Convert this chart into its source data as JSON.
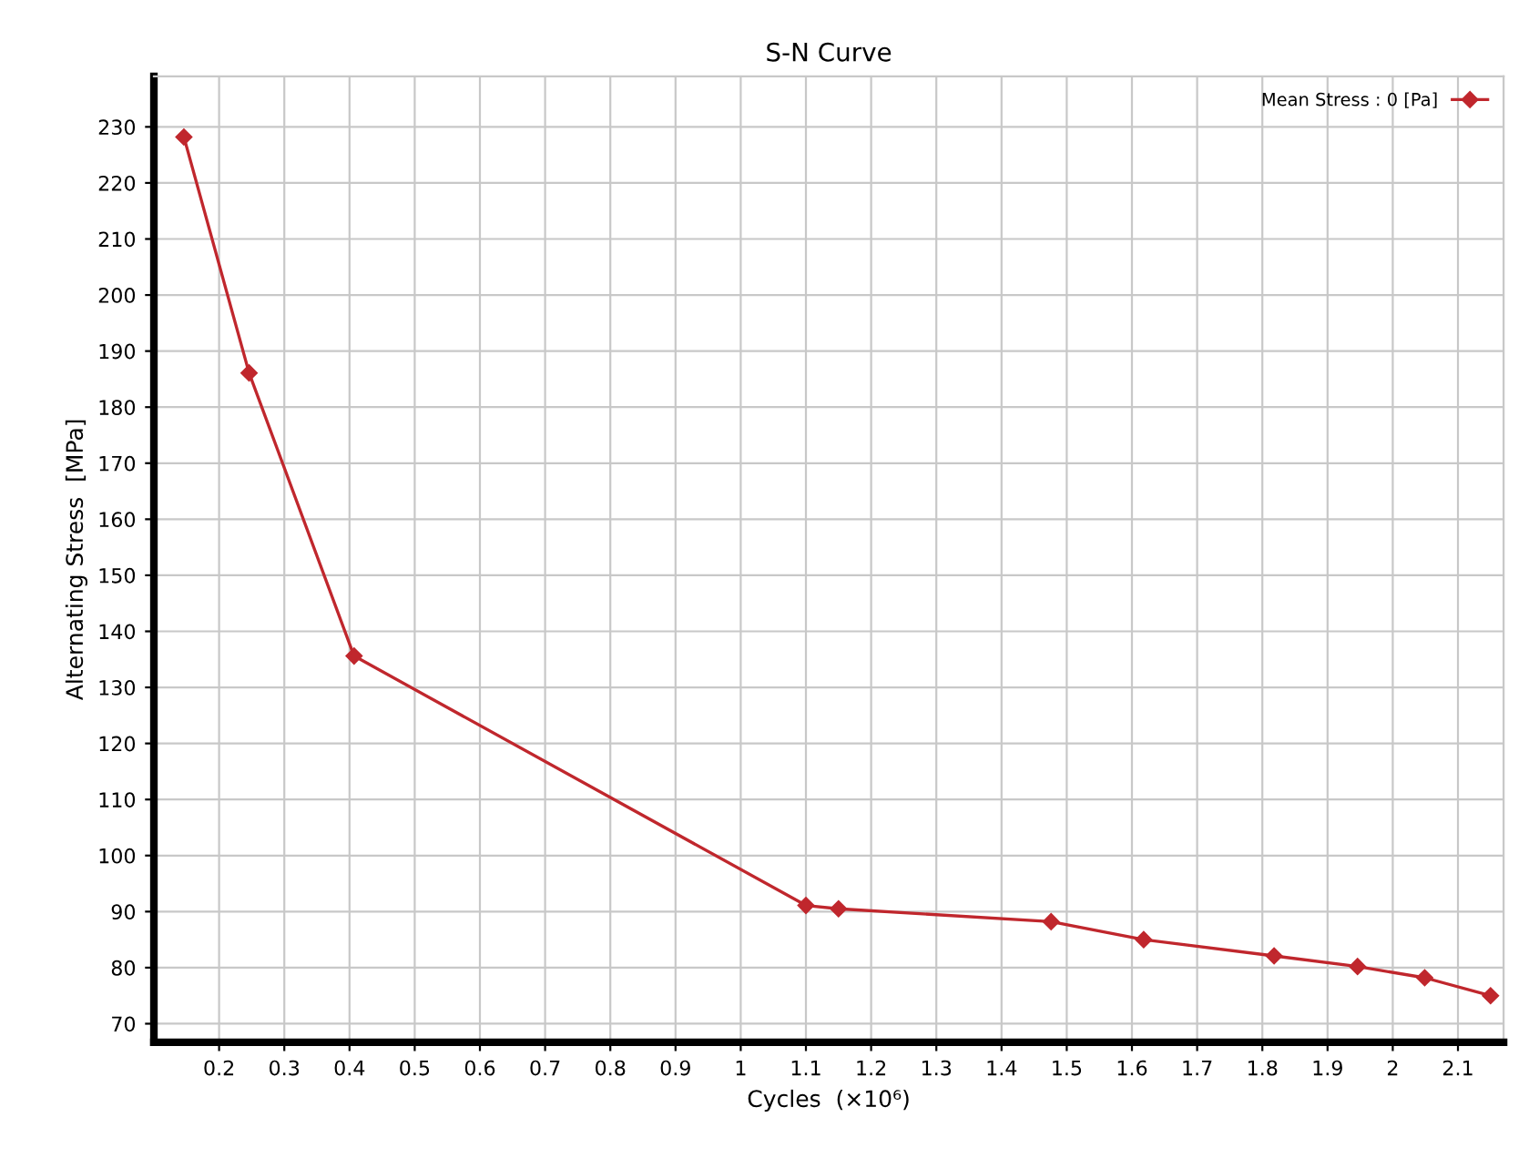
{
  "chart_data": {
    "type": "line",
    "title": "S-N Curve",
    "xlabel": "Cycles  (×10⁶)",
    "ylabel": "Alternating Stress  [MPa]",
    "x": [
      0.146,
      0.246,
      0.407,
      1.1,
      1.15,
      1.476,
      1.618,
      1.818,
      1.946,
      2.049,
      2.15
    ],
    "series": [
      {
        "name": "Mean Stress : 0 [Pa]",
        "color": "#c0272d",
        "values": [
          228.2,
          186.1,
          135.6,
          91.1,
          90.5,
          88.2,
          85.0,
          82.1,
          80.2,
          78.2,
          75.0
        ]
      }
    ],
    "xlim": [
      0.1,
      2.17
    ],
    "ylim": [
      66.7,
      239
    ],
    "xticks": [
      0.2,
      0.3,
      0.4,
      0.5,
      0.6,
      0.7,
      0.8,
      0.9,
      1,
      1.1,
      1.2,
      1.3,
      1.4,
      1.5,
      1.6,
      1.7,
      1.8,
      1.9,
      2,
      2.1
    ],
    "yticks": [
      70,
      80,
      90,
      100,
      110,
      120,
      130,
      140,
      150,
      160,
      170,
      180,
      190,
      200,
      210,
      220,
      230
    ],
    "grid": true,
    "legend": "top right",
    "marker": "diamond",
    "line_style": "solid"
  }
}
